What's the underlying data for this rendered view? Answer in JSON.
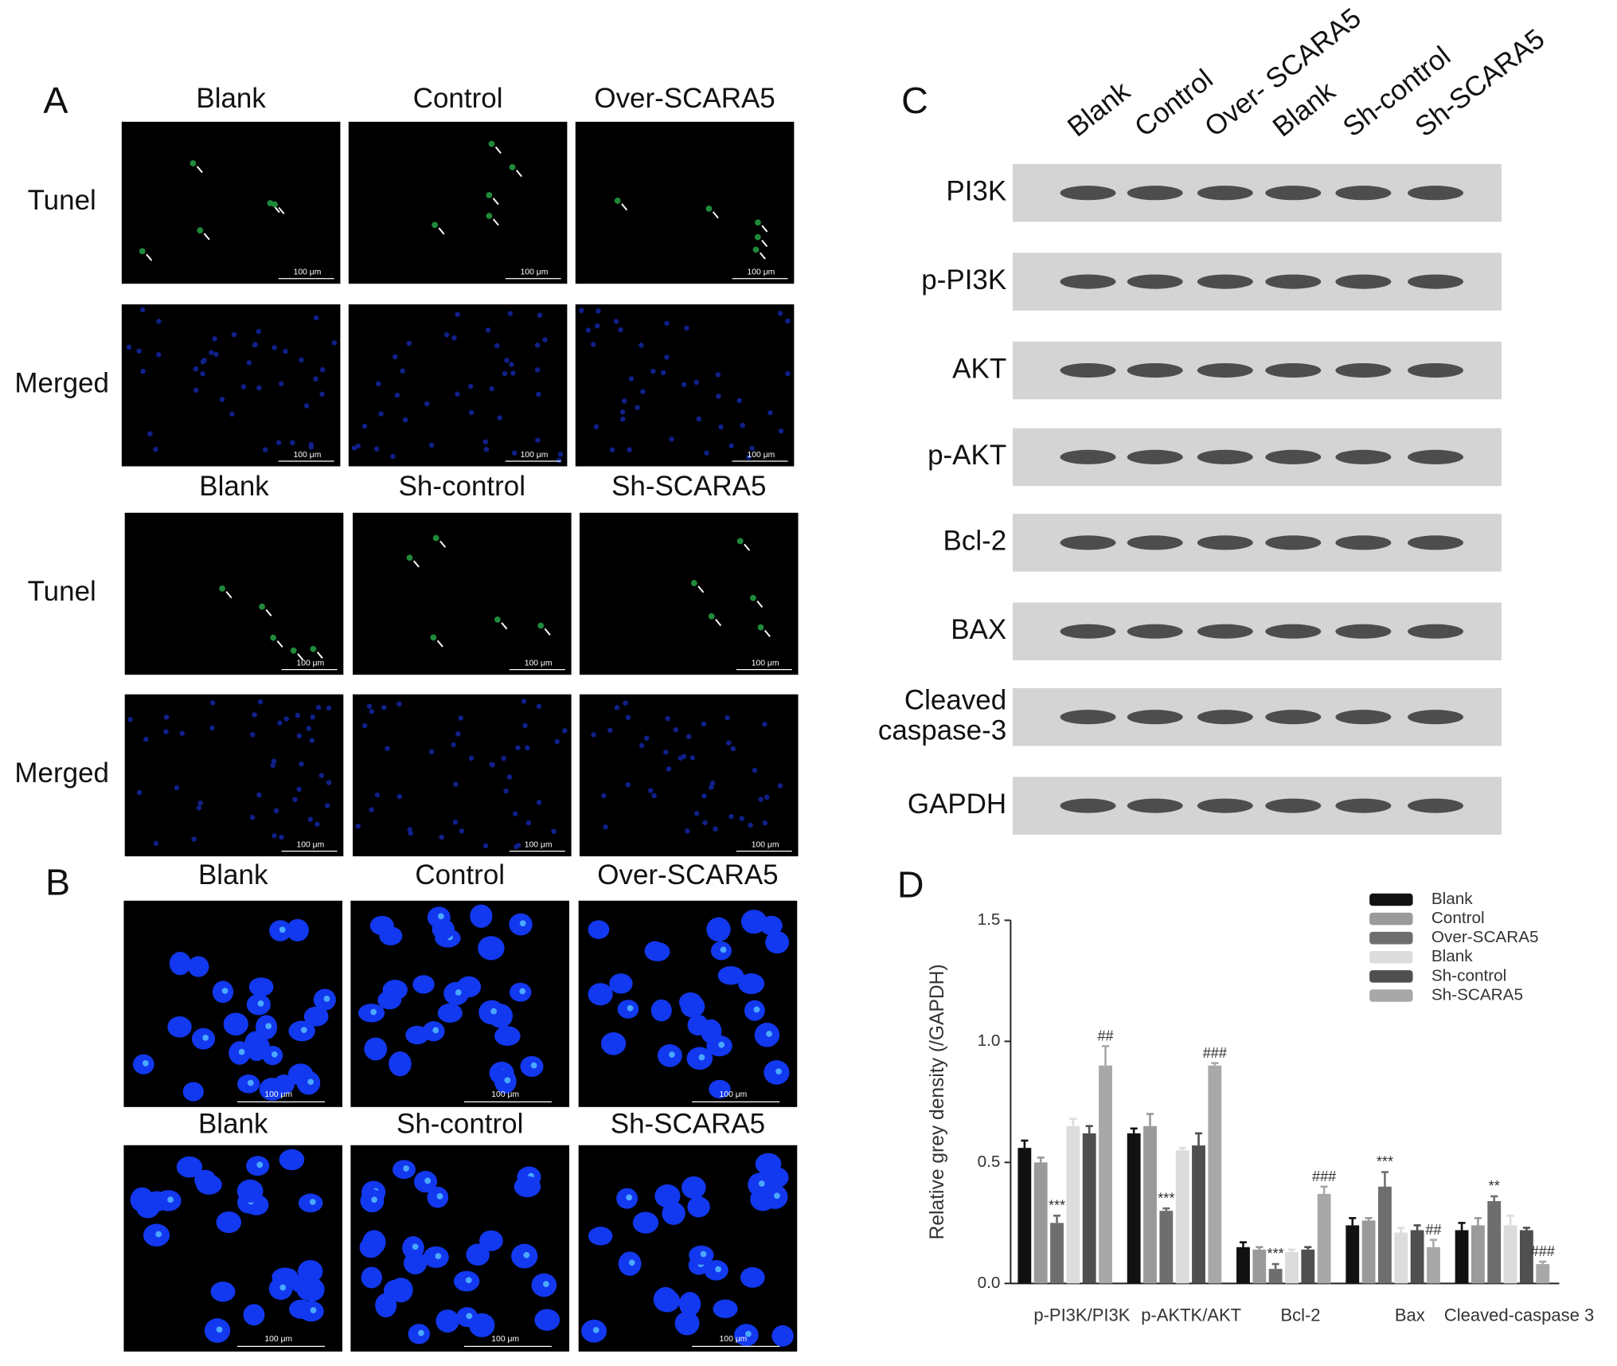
{
  "panel_a": {
    "label": "A",
    "groups": [
      {
        "columns": [
          "Blank",
          "Control",
          "Over-SCARA5"
        ],
        "rows": [
          "Tunel",
          "Merged"
        ]
      },
      {
        "columns": [
          "Blank",
          "Sh-control",
          "Sh-SCARA5"
        ],
        "rows": [
          "Tunel",
          "Merged"
        ]
      }
    ],
    "scale_bar": "100 μm"
  },
  "panel_b": {
    "label": "B",
    "groups": [
      {
        "columns": [
          "Blank",
          "Control",
          "Over-SCARA5"
        ]
      },
      {
        "columns": [
          "Blank",
          "Sh-control",
          "Sh-SCARA5"
        ]
      }
    ]
  },
  "panel_c": {
    "label": "C",
    "lanes": [
      "Blank",
      "Control",
      "Over- SCARA5",
      "Blank",
      "Sh-control",
      "Sh-SCARA5"
    ],
    "rows": [
      [
        "PI3K"
      ],
      [
        "p-PI3K"
      ],
      [
        "AKT"
      ],
      [
        "p-AKT"
      ],
      [
        "Bcl-2"
      ],
      [
        "BAX"
      ],
      [
        "Cleaved",
        "caspase-3"
      ],
      [
        "GAPDH"
      ]
    ]
  },
  "chart_data": {
    "type": "bar",
    "panel_label": "D",
    "y_label": "Relative grey density (/GAPDH)",
    "categories": [
      "p-PI3K/PI3K",
      "p-AKTK/AKT",
      "Bcl-2",
      "Bax",
      "Cleaved-caspase 3"
    ],
    "ylim": [
      0,
      1.5
    ],
    "yticks": [
      {
        "value": 0,
        "label": "0.0"
      },
      {
        "value": 0.5,
        "label": "0.5"
      },
      {
        "value": 1,
        "label": "1.0"
      },
      {
        "value": 1.5,
        "label": "1.5"
      }
    ],
    "series": [
      {
        "name": "Blank",
        "color": "#111111",
        "values": [
          0.56,
          0.62,
          0.15,
          0.24,
          0.22
        ],
        "errors": [
          0.03,
          0.02,
          0.02,
          0.03,
          0.03
        ]
      },
      {
        "name": "Control",
        "color": "#9a9a9a",
        "values": [
          0.5,
          0.65,
          0.14,
          0.26,
          0.24
        ],
        "errors": [
          0.02,
          0.05,
          0.01,
          0.01,
          0.03
        ]
      },
      {
        "name": "Over-SCARA5",
        "color": "#6e6e6e",
        "values": [
          0.25,
          0.3,
          0.06,
          0.4,
          0.34
        ],
        "errors": [
          0.03,
          0.01,
          0.02,
          0.06,
          0.02
        ],
        "annotations": [
          "***",
          "***",
          "***",
          "***",
          "**"
        ]
      },
      {
        "name": "Blank",
        "color": "#dcdcdc",
        "values": [
          0.65,
          0.55,
          0.13,
          0.21,
          0.24
        ],
        "errors": [
          0.03,
          0.01,
          0.01,
          0.02,
          0.04
        ]
      },
      {
        "name": "Sh-control",
        "color": "#4f4f4f",
        "values": [
          0.62,
          0.57,
          0.14,
          0.22,
          0.22
        ],
        "errors": [
          0.03,
          0.05,
          0.01,
          0.02,
          0.01
        ]
      },
      {
        "name": "Sh-SCARA5",
        "color": "#a8a8a8",
        "values": [
          0.9,
          0.9,
          0.37,
          0.15,
          0.08
        ],
        "errors": [
          0.08,
          0.01,
          0.03,
          0.03,
          0.01
        ],
        "annotations": [
          "##",
          "###",
          "###",
          "##",
          "###"
        ]
      }
    ]
  }
}
